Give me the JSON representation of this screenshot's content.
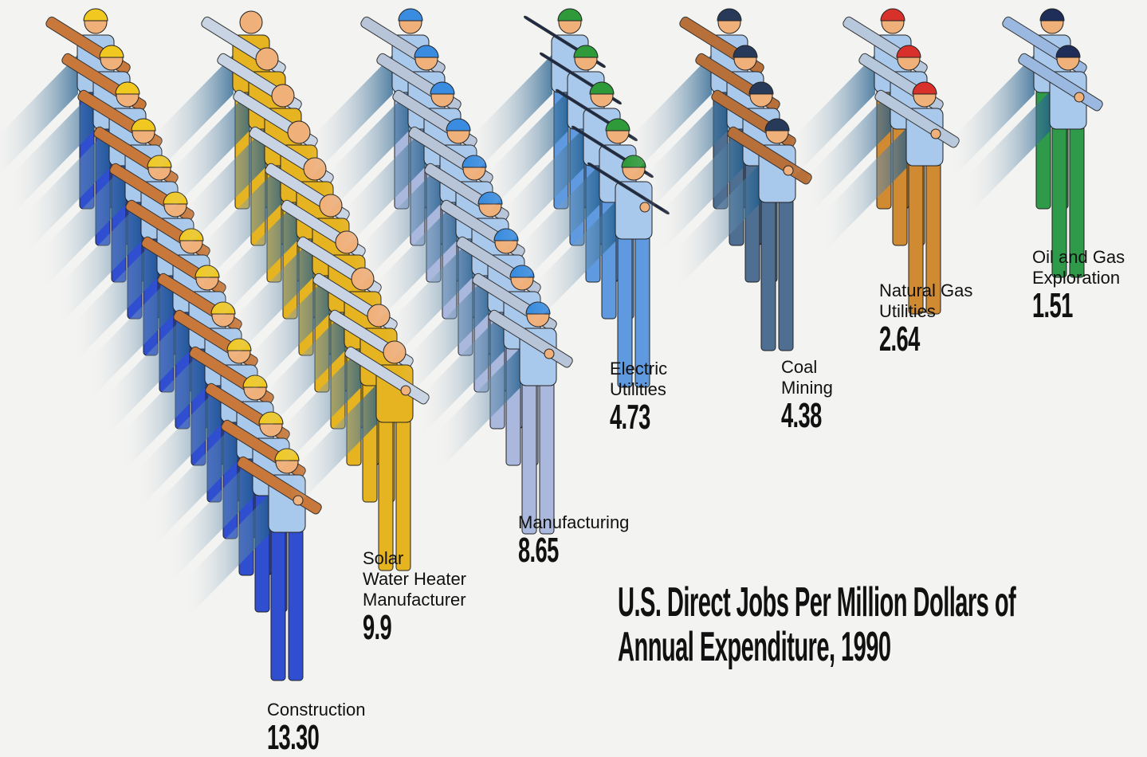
{
  "chart_data": {
    "type": "pictograph",
    "title": "U.S. Direct Jobs Per Million Dollars of Annual Expenditure, 1990",
    "categories": [
      "Construction",
      "Solar\nWater Heater\nManufacturer",
      "Manufacturing",
      "Electric\nUtilities",
      "Coal\nMining",
      "Natural Gas\nUtilities",
      "Oil and Gas\nExploration"
    ],
    "values": [
      13.3,
      9.9,
      8.65,
      4.73,
      4.38,
      2.64,
      1.51
    ],
    "value_labels": [
      "13.30",
      "9.9",
      "8.65",
      "4.73",
      "4.38",
      "2.64",
      "1.51"
    ],
    "colors": [
      "#2f4fd0",
      "#e6b420",
      "#a9b8dc",
      "#5f9ae0",
      "#4f6f92",
      "#cf8a32",
      "#2e9a4a"
    ]
  }
}
